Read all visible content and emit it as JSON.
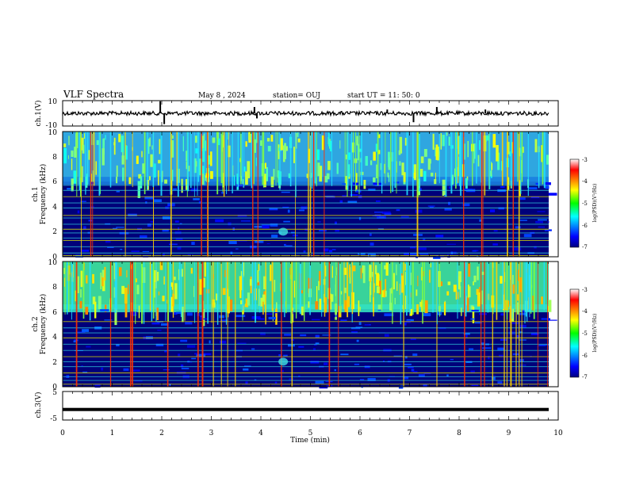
{
  "header": {
    "title": "VLF Spectra",
    "date": "May 8  , 2024",
    "station": "station= OUJ",
    "start": "start  UT  =   11: 50: 0"
  },
  "chart_data": [
    {
      "type": "line",
      "ylabel": "ch.1(V)",
      "ylim": [
        -10,
        10
      ],
      "yticks": [
        "10",
        "-10"
      ],
      "xlim": [
        0,
        10
      ],
      "baseline": 0,
      "spikes": [
        {
          "x": 1.97,
          "y": 9.5
        },
        {
          "x": 2.05,
          "y": -8.5
        },
        {
          "x": 3.87,
          "y": 5
        },
        {
          "x": 3.92,
          "y": -4
        },
        {
          "x": 7.08,
          "y": -7
        },
        {
          "x": 7.55,
          "y": 5
        },
        {
          "x": 8.53,
          "y": 3
        },
        {
          "x": 6.55,
          "y": 3
        }
      ]
    },
    {
      "type": "heatmap",
      "ylabel": "ch.1\nFrequency (kHz)",
      "ylim": [
        0,
        10
      ],
      "yticks": [
        "0",
        "2",
        "4",
        "6",
        "8",
        "10"
      ],
      "xlim": [
        0,
        10
      ],
      "colorbar": {
        "label": "log(PSD)(V²/Hz)",
        "range": [
          -7,
          -3
        ],
        "ticks": [
          "-3",
          "-4",
          "-5",
          "-6",
          "-7"
        ]
      },
      "band_edge_khz": 6
    },
    {
      "type": "heatmap",
      "ylabel": "ch.2\nFrequency (kHz)",
      "ylim": [
        0,
        10
      ],
      "yticks": [
        "0",
        "2",
        "4",
        "6",
        "8",
        "10"
      ],
      "xlim": [
        0,
        10
      ],
      "colorbar": {
        "label": "log(PSD)(V²/Hz)",
        "range": [
          -7,
          -3
        ],
        "ticks": [
          "-3",
          "-4",
          "-5",
          "-6",
          "-7"
        ]
      },
      "band_edge_khz": 6.2
    },
    {
      "type": "line",
      "ylabel": "ch.3(V)",
      "ylim": [
        -5,
        5
      ],
      "yticks": [
        "5",
        "-5"
      ],
      "xlim": [
        0,
        10
      ],
      "baseline": -1.3,
      "xticks": [
        "0",
        "1",
        "2",
        "3",
        "4",
        "5",
        "6",
        "7",
        "8",
        "9",
        "10"
      ],
      "xlabel": "Time (min)"
    }
  ]
}
